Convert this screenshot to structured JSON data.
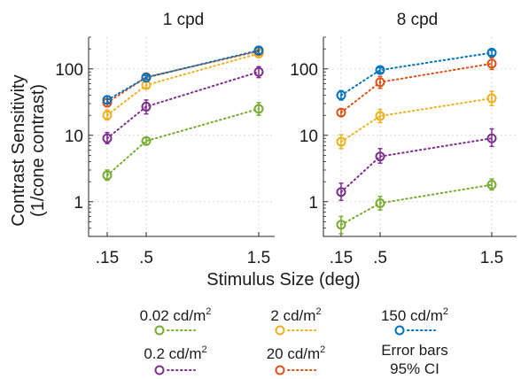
{
  "chart_data": {
    "type": "line",
    "ylabel": "Contrast Sensitivity",
    "ylabel_sub": "(1/cone contrast)",
    "xlabel": "Stimulus Size (deg)",
    "x": [
      0.15,
      0.5,
      1.5
    ],
    "x_tick_labels": [
      ".15",
      ".5",
      "1.5"
    ],
    "y_scale": "log",
    "ylim": [
      0.3,
      300
    ],
    "y_ticks": [
      1,
      10,
      100
    ],
    "y_tick_labels": [
      "1",
      "10",
      "100"
    ],
    "grid": true,
    "error_bars": "95% CI",
    "colors": {
      "0.02 cd/m2": "#77ac30",
      "0.2 cd/m2": "#7e2f8e",
      "2 cd/m2": "#edb120",
      "20 cd/m2": "#d95319",
      "150 cd/m2": "#0072bd"
    },
    "panels": [
      {
        "title": "1 cpd",
        "series": [
          {
            "name": "0.02 cd/m2",
            "values": [
              2.5,
              8.2,
              25
            ],
            "lower": [
              2.1,
              7.2,
              20
            ],
            "upper": [
              3.0,
              9.2,
              31
            ]
          },
          {
            "name": "0.2 cd/m2",
            "values": [
              9,
              27,
              90
            ],
            "lower": [
              7.5,
              21,
              74
            ],
            "upper": [
              11,
              34,
              108
            ]
          },
          {
            "name": "2 cd/m2",
            "values": [
              20,
              57,
              170
            ],
            "lower": [
              17,
              52,
              150
            ],
            "upper": [
              24,
              63,
              195
            ]
          },
          {
            "name": "20 cd/m2",
            "values": [
              31,
              75,
              185
            ],
            "lower": [
              27,
              71,
              163
            ],
            "upper": [
              35,
              80,
              208
            ]
          },
          {
            "name": "150 cd/m2",
            "values": [
              34,
              74,
              190
            ],
            "lower": [
              30,
              70,
              170
            ],
            "upper": [
              39,
              79,
              212
            ]
          }
        ]
      },
      {
        "title": "8 cpd",
        "series": [
          {
            "name": "0.02 cd/m2",
            "values": [
              0.45,
              0.95,
              1.8
            ],
            "lower": [
              0.33,
              0.75,
              1.5
            ],
            "upper": [
              0.6,
              1.2,
              2.2
            ]
          },
          {
            "name": "0.2 cd/m2",
            "values": [
              1.4,
              4.8,
              9
            ],
            "lower": [
              1.05,
              3.8,
              6.8
            ],
            "upper": [
              1.9,
              6.3,
              12.5
            ]
          },
          {
            "name": "2 cd/m2",
            "values": [
              8,
              19.5,
              36
            ],
            "lower": [
              6.3,
              15.5,
              28
            ],
            "upper": [
              10.2,
              24.5,
              46
            ]
          },
          {
            "name": "20 cd/m2",
            "values": [
              22,
              63,
              120
            ],
            "lower": [
              19.5,
              51,
              98
            ],
            "upper": [
              25,
              77,
              147
            ]
          },
          {
            "name": "150 cd/m2",
            "values": [
              40,
              96,
              175
            ],
            "lower": [
              34,
              88,
              160
            ],
            "upper": [
              47,
              104,
              190
            ]
          }
        ]
      }
    ]
  },
  "legend": {
    "entries": [
      {
        "value": "0.02 cd/m",
        "sup": "2"
      },
      {
        "value": "2 cd/m",
        "sup": "2"
      },
      {
        "value": "150 cd/m",
        "sup": "2"
      },
      {
        "value": "0.2 cd/m",
        "sup": "2"
      },
      {
        "value": "20 cd/m",
        "sup": "2"
      }
    ],
    "error_bars_line1": "Error bars",
    "error_bars_line2": "95% CI"
  }
}
